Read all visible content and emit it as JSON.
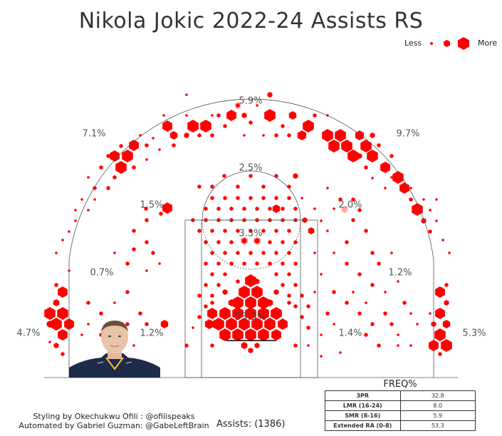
{
  "title": "Nikola Jokic 2022-24 Assists RS",
  "legend": {
    "less_label": "Less",
    "more_label": "More"
  },
  "credits": {
    "line1": "Styling by Okechukwu Ofili : @ofilispeaks",
    "line2": "Automated by Gabriel Guzman: @GabeLeftBrain"
  },
  "assists_label": "Assists: (1386)",
  "freq_table": {
    "title": "FREQ%",
    "rows": [
      {
        "zone": "3PR",
        "value": "32.8"
      },
      {
        "zone": "LMR (16-24)",
        "value": "8.0"
      },
      {
        "zone": "SMR (8-16)",
        "value": "5.9"
      },
      {
        "zone": "Extended RA (0-8)",
        "value": "53.3"
      }
    ]
  },
  "colors": {
    "hex": "#ff0000",
    "court_line": "#555555",
    "text": "#333333"
  },
  "chart_data": {
    "type": "heatmap",
    "title": "Nikola Jokic 2022-24 Assists RS",
    "zone_percentages": [
      {
        "zone": "top-of-key three",
        "label": "5.9%"
      },
      {
        "zone": "left-wing three",
        "label": "7.1%"
      },
      {
        "zone": "right-wing three",
        "label": "9.7%"
      },
      {
        "zone": "left-corner three",
        "label": "4.7%"
      },
      {
        "zone": "right-corner three",
        "label": "5.3%"
      },
      {
        "zone": "top mid-range",
        "label": "2.5%"
      },
      {
        "zone": "left-elbow mid-range",
        "label": "1.5%"
      },
      {
        "zone": "right-elbow mid-range",
        "label": "2.0%"
      },
      {
        "zone": "paint non-RA",
        "label": "3.3%"
      },
      {
        "zone": "left baseline mid-range",
        "label": "0.7%"
      },
      {
        "zone": "right baseline mid-range",
        "label": "1.2%"
      },
      {
        "zone": "left short corner",
        "label": "1.2%"
      },
      {
        "zone": "right short corner",
        "label": "1.4%"
      },
      {
        "zone": "restricted area",
        "label": "53.3%"
      }
    ]
  }
}
